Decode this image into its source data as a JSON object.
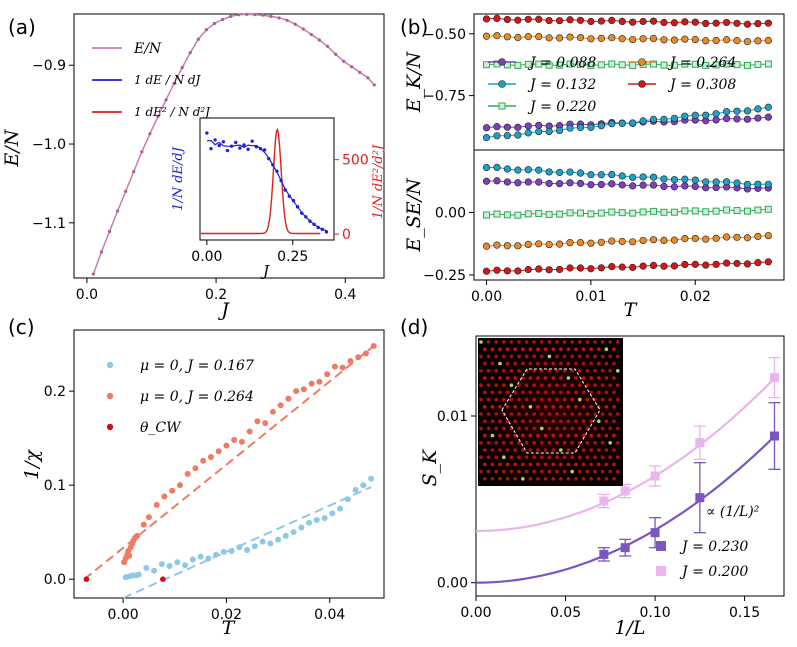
{
  "figure": {
    "panel_labels": [
      "(a)",
      "(b)",
      "(c)",
      "(d)"
    ]
  },
  "chart_data": [
    {
      "id": "a",
      "type": "line",
      "xlabel": "J",
      "ylabel": "E/N",
      "xlim": [
        -0.02,
        0.46
      ],
      "ylim": [
        -1.17,
        -0.835
      ],
      "xticks": [
        0.0,
        0.2,
        0.4
      ],
      "xtick_labels": [
        "0.0",
        "0.2",
        "0.4"
      ],
      "yticks": [
        -0.9,
        -1.0,
        -1.1
      ],
      "ytick_labels": [
        "−0.9",
        "−1.0",
        "−1.1"
      ],
      "legend": [
        "E/N",
        "1 dE / N dJ",
        "1 dE² / N d²J"
      ],
      "colors": {
        "main": "#c77caf",
        "deriv1": "#1f1fd6",
        "deriv2": "#e02020"
      },
      "series": [
        {
          "name": "E/N",
          "x": [
            0.01,
            0.0225,
            0.035,
            0.0475,
            0.06,
            0.0725,
            0.085,
            0.0975,
            0.11,
            0.1225,
            0.135,
            0.1475,
            0.16,
            0.1725,
            0.185,
            0.1975,
            0.21,
            0.2225,
            0.235,
            0.2475,
            0.26,
            0.2725,
            0.285,
            0.2975,
            0.31,
            0.3225,
            0.335,
            0.3475,
            0.36,
            0.3725,
            0.385,
            0.3975,
            0.41,
            0.4225,
            0.435,
            0.445
          ],
          "values": [
            -1.165,
            -1.137,
            -1.111,
            -1.085,
            -1.06,
            -1.035,
            -1.01,
            -0.987,
            -0.965,
            -0.944,
            -0.923,
            -0.903,
            -0.884,
            -0.867,
            -0.855,
            -0.847,
            -0.842,
            -0.838,
            -0.836,
            -0.8355,
            -0.8358,
            -0.8365,
            -0.838,
            -0.84,
            -0.843,
            -0.848,
            -0.854,
            -0.861,
            -0.868,
            -0.876,
            -0.886,
            -0.895,
            -0.902,
            -0.909,
            -0.916,
            -0.925
          ]
        }
      ],
      "inset": {
        "xlabel": "J",
        "ylabel_left": "1/N dE/dJ",
        "ylabel_right": "1/N dE²/d²J",
        "xlim": [
          -0.02,
          0.37
        ],
        "xticks": [
          0.0,
          0.25
        ],
        "xtick_labels": [
          "0.00",
          "0.25"
        ],
        "right_ylim": [
          -40,
          780
        ],
        "right_yticks": [
          0,
          500
        ],
        "right_ytick_labels": [
          "0",
          "500"
        ],
        "left_ylim": [
          -1.25,
          0.7
        ],
        "deriv1": {
          "x": [
            0.0,
            0.012,
            0.024,
            0.036,
            0.048,
            0.06,
            0.072,
            0.084,
            0.096,
            0.108,
            0.12,
            0.132,
            0.144,
            0.156,
            0.168,
            0.18,
            0.192,
            0.204,
            0.216,
            0.228,
            0.24,
            0.252,
            0.264,
            0.276,
            0.288,
            0.3,
            0.312,
            0.324,
            0.336,
            0.348
          ],
          "values": [
            0.46,
            0.21,
            0.35,
            0.26,
            0.32,
            0.18,
            0.25,
            0.31,
            0.22,
            0.27,
            0.2,
            0.33,
            0.24,
            0.21,
            0.19,
            0.05,
            -0.05,
            -0.15,
            -0.3,
            -0.45,
            -0.55,
            -0.62,
            -0.72,
            -0.82,
            -0.88,
            -0.95,
            -1.0,
            -1.05,
            -1.08,
            -1.12
          ]
        },
        "deriv2_peak": {
          "center": 0.205,
          "width": 0.016,
          "height": 700
        }
      }
    },
    {
      "id": "b",
      "type": "scatter",
      "xlabel": "T",
      "xlim": [
        -0.0012,
        0.0285
      ],
      "xticks": [
        0.0,
        0.01,
        0.02
      ],
      "xtick_labels": [
        "0.00",
        "0.01",
        "0.02"
      ],
      "top": {
        "ylabel": "E_K/N",
        "ylim": [
          -0.97,
          -0.42
        ],
        "yticks": [
          -0.5,
          -0.75
        ],
        "ytick_labels": [
          "−0.50",
          "−0.75"
        ],
        "series": [
          {
            "name": "J = 0.088",
            "color": "#7e3fbf",
            "marker": "circle",
            "y0": -0.88,
            "y1": -0.84
          },
          {
            "name": "J = 0.132",
            "color": "#1ea0c8",
            "marker": "circle",
            "y0": -0.92,
            "y1": -0.8
          },
          {
            "name": "J = 0.220",
            "color": "#2eaa55",
            "marker": "square",
            "y0": -0.625,
            "y1": -0.625
          },
          {
            "name": "J = 0.264",
            "color": "#e88a2a",
            "marker": "circle",
            "y0": -0.51,
            "y1": -0.53
          },
          {
            "name": "J = 0.308",
            "color": "#d01818",
            "marker": "circle",
            "y0": -0.44,
            "y1": -0.46
          }
        ]
      },
      "bottom": {
        "ylabel": "E_SE/N",
        "ylim": [
          -0.27,
          0.25
        ],
        "yticks": [
          0.0,
          -0.25
        ],
        "ytick_labels": [
          "0.00",
          "−0.25"
        ],
        "series": [
          {
            "name": "J = 0.088",
            "color": "#7e3fbf",
            "marker": "circle",
            "y0": 0.125,
            "y1": 0.095
          },
          {
            "name": "J = 0.132",
            "color": "#1ea0c8",
            "marker": "circle",
            "y0": 0.18,
            "y1": 0.11
          },
          {
            "name": "J = 0.220",
            "color": "#2eaa55",
            "marker": "square",
            "y0": -0.01,
            "y1": 0.01
          },
          {
            "name": "J = 0.264",
            "color": "#e88a2a",
            "marker": "circle",
            "y0": -0.135,
            "y1": -0.095
          },
          {
            "name": "J = 0.308",
            "color": "#d01818",
            "marker": "circle",
            "y0": -0.235,
            "y1": -0.2
          }
        ]
      },
      "legend": [
        "J = 0.088",
        "J = 0.264",
        "J = 0.132",
        "J = 0.308",
        "J = 0.220"
      ]
    },
    {
      "id": "c",
      "type": "scatter",
      "xlabel": "T",
      "ylabel": "1/χ",
      "xlim": [
        -0.0095,
        0.0505
      ],
      "ylim": [
        -0.02,
        0.265
      ],
      "xticks": [
        0.0,
        0.02,
        0.04
      ],
      "xtick_labels": [
        "0.00",
        "0.02",
        "0.04"
      ],
      "yticks": [
        0.0,
        0.1,
        0.2
      ],
      "ytick_labels": [
        "0.0",
        "0.1",
        "0.2"
      ],
      "legend": [
        "μ = 0, J = 0.167",
        "μ = 0, J = 0.264",
        "θ_CW"
      ],
      "series": [
        {
          "name": "μ = 0, J = 0.167",
          "color": "#8ec8e8",
          "x": [
            0.0005,
            0.0012,
            0.0018,
            0.0025,
            0.003,
            0.0045,
            0.006,
            0.0075,
            0.009,
            0.0105,
            0.012,
            0.0135,
            0.015,
            0.0165,
            0.018,
            0.0195,
            0.021,
            0.0225,
            0.024,
            0.0255,
            0.027,
            0.0285,
            0.03,
            0.0315,
            0.033,
            0.0345,
            0.036,
            0.0375,
            0.039,
            0.0405,
            0.042,
            0.0435,
            0.045,
            0.0465,
            0.048
          ],
          "values": [
            0.002,
            0.003,
            0.004,
            0.004,
            0.005,
            0.012,
            0.009,
            0.016,
            0.014,
            0.018,
            0.015,
            0.021,
            0.024,
            0.022,
            0.026,
            0.029,
            0.03,
            0.034,
            0.031,
            0.035,
            0.04,
            0.038,
            0.042,
            0.046,
            0.05,
            0.055,
            0.06,
            0.063,
            0.065,
            0.07,
            0.075,
            0.085,
            0.095,
            0.1,
            0.107
          ],
          "fit": {
            "x": [
              0.0,
              0.048
            ],
            "y": [
              -0.02,
              0.098
            ]
          },
          "theta_cw": 0.0077
        },
        {
          "name": "μ = 0, J = 0.264",
          "color": "#f07a62",
          "x": [
            0.0002,
            0.0005,
            0.0008,
            0.001,
            0.0012,
            0.0015,
            0.0018,
            0.002,
            0.0023,
            0.0027,
            0.004,
            0.005,
            0.0065,
            0.008,
            0.0095,
            0.011,
            0.0125,
            0.014,
            0.0155,
            0.017,
            0.0185,
            0.02,
            0.0215,
            0.023,
            0.0245,
            0.026,
            0.0275,
            0.029,
            0.0305,
            0.032,
            0.0335,
            0.035,
            0.0365,
            0.038,
            0.0395,
            0.041,
            0.0425,
            0.044,
            0.0455,
            0.047,
            0.0485
          ],
          "values": [
            0.018,
            0.022,
            0.026,
            0.03,
            0.025,
            0.034,
            0.038,
            0.041,
            0.044,
            0.046,
            0.058,
            0.066,
            0.079,
            0.088,
            0.094,
            0.1,
            0.112,
            0.118,
            0.126,
            0.13,
            0.136,
            0.142,
            0.148,
            0.146,
            0.157,
            0.168,
            0.166,
            0.178,
            0.185,
            0.192,
            0.2,
            0.202,
            0.208,
            0.21,
            0.218,
            0.226,
            0.225,
            0.232,
            0.236,
            0.24,
            0.248
          ],
          "fit": {
            "x": [
              -0.0075,
              0.0485
            ],
            "y": [
              0.0,
              0.248
            ]
          },
          "theta_cw": -0.0071
        }
      ],
      "theta_color": "#d01010"
    },
    {
      "id": "d",
      "type": "scatter",
      "xlabel": "1/L",
      "ylabel": "S_K",
      "xlim": [
        0.0,
        0.172
      ],
      "ylim": [
        -0.0008,
        0.0148
      ],
      "xticks": [
        0.0,
        0.05,
        0.1,
        0.15
      ],
      "xtick_labels": [
        "0.00",
        "0.05",
        "0.10",
        "0.15"
      ],
      "yticks": [
        0.0,
        0.01
      ],
      "ytick_labels": [
        "0.00",
        "0.01"
      ],
      "legend": [
        "∝ (1/L)²",
        "J = 0.230",
        "J = 0.200"
      ],
      "series": [
        {
          "name": "J = 0.230",
          "color": "#7b55c0",
          "x": [
            0.0714,
            0.0833,
            0.1,
            0.125,
            0.1667
          ],
          "values": [
            0.0017,
            0.0021,
            0.003,
            0.0051,
            0.0088
          ],
          "err": [
            0.0004,
            0.0005,
            0.0009,
            0.0021,
            0.002
          ],
          "fit": {
            "a": 0.0,
            "b": 0.316
          }
        },
        {
          "name": "J = 0.200",
          "color": "#eab4ee",
          "x": [
            0.0714,
            0.0833,
            0.1,
            0.125,
            0.1667
          ],
          "values": [
            0.0049,
            0.0055,
            0.0064,
            0.0084,
            0.0123
          ],
          "err": [
            0.0004,
            0.0004,
            0.0006,
            0.001,
            0.0012
          ],
          "fit": {
            "a": 0.0031,
            "b": 0.33
          }
        }
      ]
    }
  ]
}
